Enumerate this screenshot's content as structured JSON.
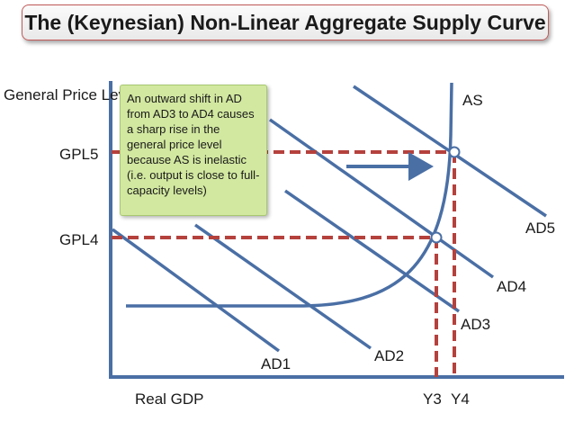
{
  "title": "The (Keynesian) Non-Linear Aggregate Supply Curve",
  "note": "An outward shift in AD from AD3 to AD4 causes a sharp rise in the general price level because AS is inelastic (i.e. output is close to full-capacity levels)",
  "axes": {
    "y_label": "General Price Level",
    "x_label": "Real GDP"
  },
  "price_levels": [
    "GPL5",
    "GPL4"
  ],
  "outputs": [
    "Y3",
    "Y4"
  ],
  "curves": {
    "as": "AS",
    "ad": [
      "AD1",
      "AD2",
      "AD3",
      "AD4",
      "AD5"
    ]
  },
  "colors": {
    "curve": "#4a6fa5",
    "guide": "#b5413d",
    "axis": "#4a6fa5",
    "title_border": "#c05a58",
    "note_fill": "#d2e8a0"
  }
}
